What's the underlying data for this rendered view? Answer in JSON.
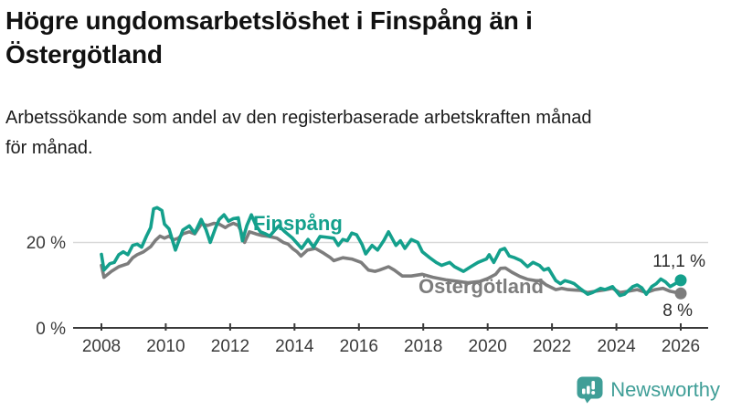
{
  "header": {
    "title_line1": "Högre ungdomsarbetslöshet i Finspång än i",
    "title_line2": "Östergötland",
    "subtitle_line1": "Arbetssökande som andel av den registerbaserade arbetskraften månad",
    "subtitle_line2": "för månad."
  },
  "chart_data": {
    "type": "line",
    "unit": "%",
    "x_range": [
      2008,
      2026
    ],
    "x_ticks": [
      2008,
      2010,
      2012,
      2014,
      2016,
      2018,
      2020,
      2022,
      2024,
      2026
    ],
    "y_ticks": [
      {
        "value": 0,
        "label": "0 %"
      },
      {
        "value": 20,
        "label": "20 %"
      }
    ],
    "ylim": [
      0,
      30
    ],
    "grid": "horizontal line at 20% only",
    "legend_position": "inline labels on lines",
    "series": [
      {
        "name": "Östergötland",
        "color": "#7d7d7d",
        "end_label": "8 %",
        "end_value": 8.0,
        "points": [
          [
            2008.0,
            14.6
          ],
          [
            2008.08,
            11.8
          ],
          [
            2008.31,
            13.2
          ],
          [
            2008.54,
            14.3
          ],
          [
            2008.82,
            15.0
          ],
          [
            2008.97,
            16.4
          ],
          [
            2009.11,
            17.1
          ],
          [
            2009.31,
            17.8
          ],
          [
            2009.53,
            19.0
          ],
          [
            2009.68,
            20.5
          ],
          [
            2009.82,
            21.5
          ],
          [
            2009.96,
            21.0
          ],
          [
            2010.1,
            21.5
          ],
          [
            2010.24,
            20.6
          ],
          [
            2010.39,
            21.0
          ],
          [
            2010.53,
            22.0
          ],
          [
            2010.73,
            22.5
          ],
          [
            2010.9,
            22.0
          ],
          [
            2011.1,
            24.3
          ],
          [
            2011.3,
            24.0
          ],
          [
            2011.5,
            24.5
          ],
          [
            2011.66,
            24.3
          ],
          [
            2011.85,
            23.5
          ],
          [
            2011.95,
            24.0
          ],
          [
            2012.1,
            24.5
          ],
          [
            2012.25,
            24.0
          ],
          [
            2012.32,
            22.9
          ],
          [
            2012.45,
            20.0
          ],
          [
            2012.6,
            22.5
          ],
          [
            2012.8,
            22.0
          ],
          [
            2013.0,
            21.6
          ],
          [
            2013.2,
            21.4
          ],
          [
            2013.45,
            21.0
          ],
          [
            2013.65,
            20.0
          ],
          [
            2013.8,
            19.6
          ],
          [
            2013.95,
            18.5
          ],
          [
            2014.08,
            17.8
          ],
          [
            2014.2,
            16.8
          ],
          [
            2014.4,
            18.2
          ],
          [
            2014.65,
            18.6
          ],
          [
            2014.9,
            17.5
          ],
          [
            2015.1,
            16.5
          ],
          [
            2015.22,
            15.7
          ],
          [
            2015.5,
            16.4
          ],
          [
            2015.78,
            16.1
          ],
          [
            2016.07,
            15.3
          ],
          [
            2016.3,
            13.5
          ],
          [
            2016.5,
            13.2
          ],
          [
            2016.64,
            13.5
          ],
          [
            2016.92,
            14.3
          ],
          [
            2017.1,
            13.5
          ],
          [
            2017.35,
            12.1
          ],
          [
            2017.63,
            12.1
          ],
          [
            2017.97,
            12.5
          ],
          [
            2018.3,
            11.8
          ],
          [
            2018.7,
            11.2
          ],
          [
            2019.1,
            10.8
          ],
          [
            2019.4,
            10.5
          ],
          [
            2019.75,
            10.8
          ],
          [
            2020.0,
            11.5
          ],
          [
            2020.25,
            12.5
          ],
          [
            2020.4,
            13.9
          ],
          [
            2020.55,
            14.0
          ],
          [
            2020.75,
            13.0
          ],
          [
            2021.0,
            12.0
          ],
          [
            2021.25,
            11.3
          ],
          [
            2021.5,
            11.0
          ],
          [
            2021.65,
            11.0
          ],
          [
            2021.82,
            10.0
          ],
          [
            2022.12,
            8.9
          ],
          [
            2022.3,
            9.2
          ],
          [
            2022.5,
            8.9
          ],
          [
            2022.7,
            8.8
          ],
          [
            2022.9,
            8.7
          ],
          [
            2023.1,
            8.2
          ],
          [
            2023.35,
            8.5
          ],
          [
            2023.6,
            8.8
          ],
          [
            2023.88,
            9.2
          ],
          [
            2024.11,
            8.2
          ],
          [
            2024.37,
            8.5
          ],
          [
            2024.65,
            8.9
          ],
          [
            2024.93,
            8.2
          ],
          [
            2025.2,
            8.9
          ],
          [
            2025.45,
            9.2
          ],
          [
            2025.67,
            8.5
          ],
          [
            2026.0,
            8.0
          ]
        ]
      },
      {
        "name": "Finspång",
        "color": "#14a08c",
        "end_label": "11,1 %",
        "end_value": 11.1,
        "points": [
          [
            2008.0,
            17.2
          ],
          [
            2008.08,
            13.5
          ],
          [
            2008.26,
            15.0
          ],
          [
            2008.4,
            15.3
          ],
          [
            2008.54,
            17.1
          ],
          [
            2008.68,
            17.8
          ],
          [
            2008.82,
            17.1
          ],
          [
            2008.97,
            19.3
          ],
          [
            2009.11,
            19.6
          ],
          [
            2009.25,
            18.9
          ],
          [
            2009.4,
            21.5
          ],
          [
            2009.53,
            23.5
          ],
          [
            2009.62,
            27.9
          ],
          [
            2009.73,
            28.2
          ],
          [
            2009.88,
            27.5
          ],
          [
            2009.96,
            24.3
          ],
          [
            2010.1,
            23.2
          ],
          [
            2010.3,
            18.2
          ],
          [
            2010.53,
            22.9
          ],
          [
            2010.73,
            23.9
          ],
          [
            2010.9,
            22.2
          ],
          [
            2011.1,
            25.4
          ],
          [
            2011.25,
            23.0
          ],
          [
            2011.38,
            20.0
          ],
          [
            2011.55,
            23.5
          ],
          [
            2011.66,
            25.4
          ],
          [
            2011.81,
            26.5
          ],
          [
            2011.95,
            25.0
          ],
          [
            2012.1,
            25.6
          ],
          [
            2012.25,
            25.8
          ],
          [
            2012.38,
            20.4
          ],
          [
            2012.52,
            24.0
          ],
          [
            2012.66,
            26.5
          ],
          [
            2012.8,
            24.0
          ],
          [
            2012.94,
            22.5
          ],
          [
            2013.1,
            22.0
          ],
          [
            2013.23,
            21.5
          ],
          [
            2013.4,
            23.0
          ],
          [
            2013.51,
            23.9
          ],
          [
            2013.7,
            22.5
          ],
          [
            2013.94,
            21.0
          ],
          [
            2014.22,
            18.6
          ],
          [
            2014.42,
            20.7
          ],
          [
            2014.59,
            18.9
          ],
          [
            2014.79,
            21.4
          ],
          [
            2015.02,
            21.2
          ],
          [
            2015.22,
            21.0
          ],
          [
            2015.36,
            19.3
          ],
          [
            2015.5,
            20.7
          ],
          [
            2015.64,
            20.4
          ],
          [
            2015.78,
            22.2
          ],
          [
            2015.93,
            21.8
          ],
          [
            2016.1,
            19.5
          ],
          [
            2016.21,
            17.3
          ],
          [
            2016.41,
            19.3
          ],
          [
            2016.58,
            18.2
          ],
          [
            2016.78,
            20.5
          ],
          [
            2016.92,
            22.5
          ],
          [
            2017.15,
            19.3
          ],
          [
            2017.29,
            20.4
          ],
          [
            2017.43,
            18.6
          ],
          [
            2017.63,
            20.7
          ],
          [
            2017.83,
            20.0
          ],
          [
            2017.97,
            17.8
          ],
          [
            2018.2,
            16.4
          ],
          [
            2018.4,
            15.3
          ],
          [
            2018.57,
            14.6
          ],
          [
            2018.82,
            15.3
          ],
          [
            2018.97,
            14.3
          ],
          [
            2019.25,
            13.2
          ],
          [
            2019.48,
            14.3
          ],
          [
            2019.7,
            15.3
          ],
          [
            2019.96,
            16.1
          ],
          [
            2020.05,
            17.1
          ],
          [
            2020.19,
            15.3
          ],
          [
            2020.39,
            18.2
          ],
          [
            2020.53,
            18.6
          ],
          [
            2020.67,
            16.8
          ],
          [
            2020.84,
            16.4
          ],
          [
            2021.04,
            15.7
          ],
          [
            2021.24,
            14.3
          ],
          [
            2021.41,
            15.3
          ],
          [
            2021.61,
            14.6
          ],
          [
            2021.75,
            13.5
          ],
          [
            2021.89,
            13.9
          ],
          [
            2022.12,
            11.0
          ],
          [
            2022.26,
            10.3
          ],
          [
            2022.4,
            11.0
          ],
          [
            2022.55,
            10.7
          ],
          [
            2022.69,
            10.3
          ],
          [
            2022.9,
            9.0
          ],
          [
            2023.11,
            7.8
          ],
          [
            2023.26,
            8.2
          ],
          [
            2023.51,
            9.2
          ],
          [
            2023.65,
            8.9
          ],
          [
            2023.88,
            9.6
          ],
          [
            2024.11,
            7.5
          ],
          [
            2024.25,
            7.8
          ],
          [
            2024.51,
            9.6
          ],
          [
            2024.65,
            10.0
          ],
          [
            2024.79,
            9.3
          ],
          [
            2024.93,
            7.8
          ],
          [
            2025.1,
            9.6
          ],
          [
            2025.24,
            10.3
          ],
          [
            2025.38,
            11.4
          ],
          [
            2025.53,
            10.7
          ],
          [
            2025.67,
            9.6
          ],
          [
            2025.81,
            10.2
          ],
          [
            2026.0,
            11.1
          ]
        ]
      }
    ]
  },
  "logo": {
    "wordmark": "Newsworthy",
    "icon": "newsworthy-chart-bubble-icon",
    "color": "#3f9e97"
  }
}
